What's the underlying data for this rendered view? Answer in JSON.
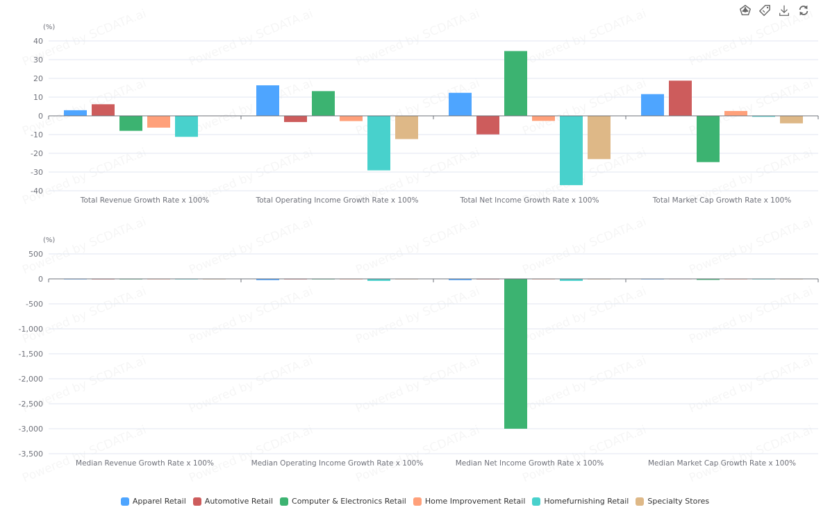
{
  "toolbox": {
    "icons": [
      "chart-type-icon",
      "tag-icon",
      "download-icon",
      "refresh-icon"
    ]
  },
  "legend": [
    {
      "name": "Apparel Retail",
      "color": "#4ea5ff"
    },
    {
      "name": "Automotive Retail",
      "color": "#cd5c5c"
    },
    {
      "name": "Computer & Electronics Retail",
      "color": "#3cb371"
    },
    {
      "name": "Home Improvement Retail",
      "color": "#ffa07a"
    },
    {
      "name": "Homefurnishing Retail",
      "color": "#48d1cc"
    },
    {
      "name": "Specialty Stores",
      "color": "#deb887"
    }
  ],
  "watermark": "Powered by SCDATA.ai",
  "chart_data": [
    {
      "type": "bar",
      "unit": "(%)",
      "categories": [
        "Total Revenue Growth Rate x 100%",
        "Total Operating Income Growth Rate x 100%",
        "Total Net Income Growth Rate x 100%",
        "Total Market Cap Growth Rate x 100%"
      ],
      "ylim": [
        -40,
        40
      ],
      "yticks": [
        40,
        30,
        20,
        10,
        0,
        -10,
        -20,
        -30,
        -40
      ],
      "ytick_labels": [
        "40",
        "30",
        "20",
        "10",
        "0",
        "-10",
        "-20",
        "-30",
        "-40"
      ],
      "grid": true,
      "series": [
        {
          "name": "Apparel Retail",
          "values": [
            3.0,
            16.3,
            12.3,
            11.6
          ]
        },
        {
          "name": "Automotive Retail",
          "values": [
            6.2,
            -3.3,
            -9.9,
            18.8
          ]
        },
        {
          "name": "Computer & Electronics Retail",
          "values": [
            -8.0,
            13.2,
            34.6,
            -24.7
          ]
        },
        {
          "name": "Home Improvement Retail",
          "values": [
            -6.3,
            -2.8,
            -2.7,
            2.6
          ]
        },
        {
          "name": "Homefurnishing Retail",
          "values": [
            -11.2,
            -29.1,
            -37.0,
            -0.5
          ]
        },
        {
          "name": "Specialty Stores",
          "values": [
            0.1,
            -12.4,
            -23.1,
            -4.0
          ]
        }
      ]
    },
    {
      "type": "bar",
      "unit": "(%)",
      "categories": [
        "Median Revenue Growth Rate x 100%",
        "Median Operating Income Growth Rate x 100%",
        "Median Net Income Growth Rate x 100%",
        "Median Market Cap Growth Rate x 100%"
      ],
      "ylim": [
        -3500,
        500
      ],
      "yticks": [
        500,
        0,
        -500,
        -1000,
        -1500,
        -2000,
        -2500,
        -3000,
        -3500
      ],
      "ytick_labels": [
        "500",
        "0",
        "-500",
        "-1,000",
        "-1,500",
        "-2,000",
        "-2,500",
        "-3,000",
        "-3,500"
      ],
      "grid": true,
      "series": [
        {
          "name": "Apparel Retail",
          "values": [
            -3,
            -25,
            -25,
            -3
          ]
        },
        {
          "name": "Automotive Retail",
          "values": [
            -2,
            -5,
            -5,
            3
          ]
        },
        {
          "name": "Computer & Electronics Retail",
          "values": [
            -8,
            -5,
            -3000,
            -20
          ]
        },
        {
          "name": "Home Improvement Retail",
          "values": [
            -2,
            -10,
            -8,
            -3
          ]
        },
        {
          "name": "Homefurnishing Retail",
          "values": [
            -10,
            -40,
            -40,
            -3
          ]
        },
        {
          "name": "Specialty Stores",
          "values": [
            -2,
            -10,
            -5,
            -5
          ]
        }
      ]
    }
  ]
}
